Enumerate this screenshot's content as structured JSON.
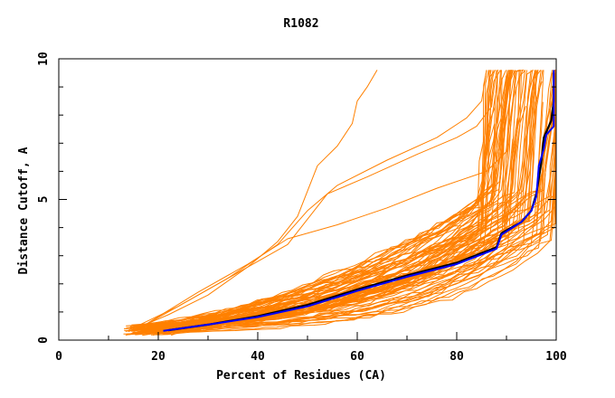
{
  "chart_data": {
    "type": "line",
    "title": "R1082",
    "xlabel": "Percent of Residues (CA)",
    "ylabel": "Distance Cutoff, A",
    "xlim": [
      0,
      100
    ],
    "ylim": [
      0,
      10
    ],
    "x_ticks": [
      0,
      20,
      40,
      60,
      80,
      100
    ],
    "y_ticks": [
      0,
      5,
      10
    ],
    "grid": false,
    "colors": {
      "models": "#ff8000",
      "highlight_black": "#000000",
      "highlight_blue": "#0000ff"
    },
    "highlight_black": [
      [
        22,
        0.35
      ],
      [
        30,
        0.55
      ],
      [
        40,
        0.85
      ],
      [
        50,
        1.25
      ],
      [
        60,
        1.8
      ],
      [
        70,
        2.3
      ],
      [
        80,
        2.75
      ],
      [
        88,
        3.3
      ],
      [
        89,
        3.8
      ],
      [
        93,
        4.2
      ],
      [
        95,
        4.6
      ],
      [
        96,
        5.2
      ],
      [
        97,
        6.3
      ],
      [
        97.5,
        7.2
      ],
      [
        99,
        7.8
      ],
      [
        99.5,
        8.5
      ],
      [
        99.5,
        9.5
      ]
    ],
    "highlight_blue": [
      [
        21,
        0.33
      ],
      [
        30,
        0.55
      ],
      [
        40,
        0.82
      ],
      [
        50,
        1.2
      ],
      [
        60,
        1.75
      ],
      [
        70,
        2.25
      ],
      [
        80,
        2.7
      ],
      [
        88,
        3.25
      ],
      [
        89,
        3.75
      ],
      [
        93,
        4.2
      ],
      [
        95,
        4.6
      ],
      [
        96,
        5.1
      ],
      [
        96.5,
        6.2
      ],
      [
        97.5,
        6.8
      ],
      [
        98,
        7.3
      ],
      [
        99.5,
        7.6
      ],
      [
        99.5,
        9.6
      ]
    ]
  }
}
